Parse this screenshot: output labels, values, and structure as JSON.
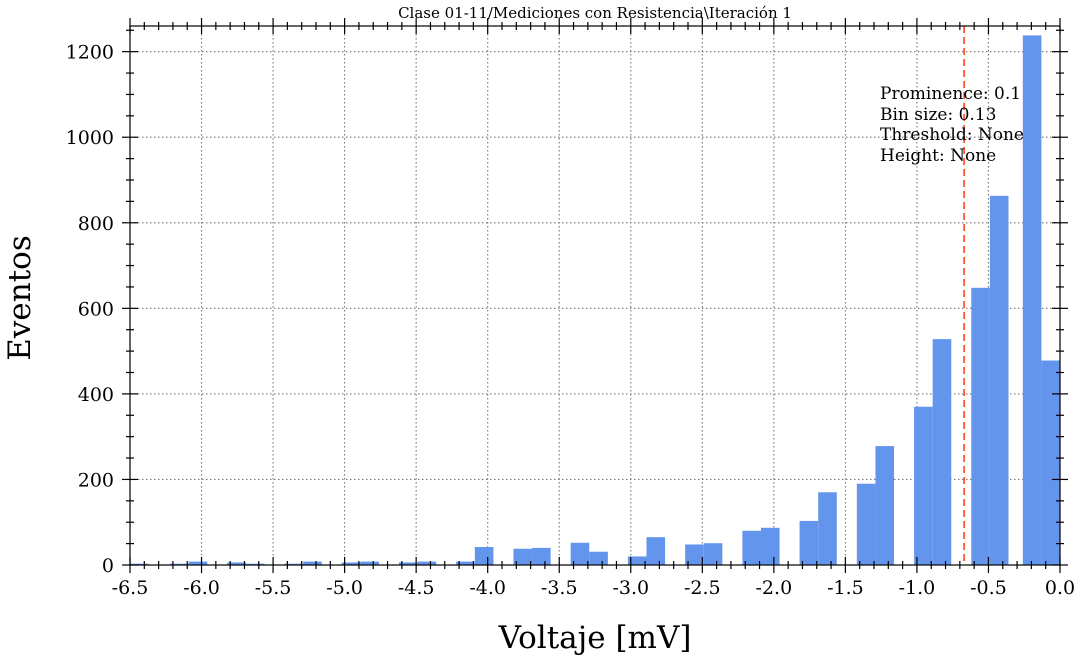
{
  "chart_data": {
    "type": "bar",
    "title": "Clase 01-11/Mediciones con Resistencia\\Iteración 1",
    "xlabel": "Voltaje [mV]",
    "ylabel": "Eventos",
    "xlim": [
      -6.5,
      0.0
    ],
    "ylim": [
      0,
      1260
    ],
    "xticks": [
      -6.5,
      -6.0,
      -5.5,
      -5.0,
      -4.5,
      -4.0,
      -3.5,
      -3.0,
      -2.5,
      -2.0,
      -1.5,
      -1.0,
      -0.5,
      0.0
    ],
    "xtick_labels": [
      "-6.5",
      "-6.0",
      "-5.5",
      "-5.0",
      "-4.5",
      "-4.0",
      "-3.5",
      "-3.0",
      "-2.5",
      "-2.0",
      "-1.5",
      "-1.0",
      "-0.5",
      "0.0"
    ],
    "yticks": [
      0,
      200,
      400,
      600,
      800,
      1000,
      1200
    ],
    "ytick_labels": [
      "0",
      "200",
      "400",
      "600",
      "800",
      "1000",
      "1200"
    ],
    "grid": true,
    "bar_color": "#6495ED",
    "threshold_line": {
      "x": -0.67,
      "color": "#FF5733",
      "style": "dashed"
    },
    "bars": [
      {
        "x0": -6.5,
        "x1": -6.37,
        "value": 3
      },
      {
        "x0": -6.22,
        "x1": -6.09,
        "value": 3
      },
      {
        "x0": -6.09,
        "x1": -5.96,
        "value": 8
      },
      {
        "x0": -5.82,
        "x1": -5.69,
        "value": 6
      },
      {
        "x0": -5.69,
        "x1": -5.56,
        "value": 3
      },
      {
        "x0": -5.42,
        "x1": -5.29,
        "value": 3
      },
      {
        "x0": -5.29,
        "x1": -5.16,
        "value": 8
      },
      {
        "x0": -5.02,
        "x1": -4.89,
        "value": 6
      },
      {
        "x0": -4.89,
        "x1": -4.76,
        "value": 8
      },
      {
        "x0": -4.62,
        "x1": -4.49,
        "value": 6
      },
      {
        "x0": -4.49,
        "x1": -4.36,
        "value": 8
      },
      {
        "x0": -4.22,
        "x1": -4.09,
        "value": 8
      },
      {
        "x0": -4.09,
        "x1": -3.96,
        "value": 42
      },
      {
        "x0": -3.82,
        "x1": -3.69,
        "value": 38
      },
      {
        "x0": -3.69,
        "x1": -3.56,
        "value": 40
      },
      {
        "x0": -3.42,
        "x1": -3.29,
        "value": 52
      },
      {
        "x0": -3.29,
        "x1": -3.16,
        "value": 31
      },
      {
        "x0": -3.02,
        "x1": -2.89,
        "value": 20
      },
      {
        "x0": -2.89,
        "x1": -2.76,
        "value": 65
      },
      {
        "x0": -2.62,
        "x1": -2.49,
        "value": 48
      },
      {
        "x0": -2.49,
        "x1": -2.36,
        "value": 51
      },
      {
        "x0": -2.22,
        "x1": -2.09,
        "value": 80
      },
      {
        "x0": -2.09,
        "x1": -1.96,
        "value": 87
      },
      {
        "x0": -1.82,
        "x1": -1.69,
        "value": 103
      },
      {
        "x0": -1.69,
        "x1": -1.56,
        "value": 170
      },
      {
        "x0": -1.42,
        "x1": -1.29,
        "value": 190
      },
      {
        "x0": -1.29,
        "x1": -1.16,
        "value": 278
      },
      {
        "x0": -1.02,
        "x1": -0.89,
        "value": 370
      },
      {
        "x0": -0.89,
        "x1": -0.76,
        "value": 528
      },
      {
        "x0": -0.62,
        "x1": -0.49,
        "value": 648
      },
      {
        "x0": -0.49,
        "x1": -0.36,
        "value": 863
      },
      {
        "x0": -0.26,
        "x1": -0.13,
        "value": 1238
      },
      {
        "x0": -0.13,
        "x1": 0.0,
        "value": 478
      }
    ],
    "annotations": [
      "Prominence: 0.1",
      "Bin size: 0.13",
      "Threshold: None",
      "Height: None"
    ]
  }
}
